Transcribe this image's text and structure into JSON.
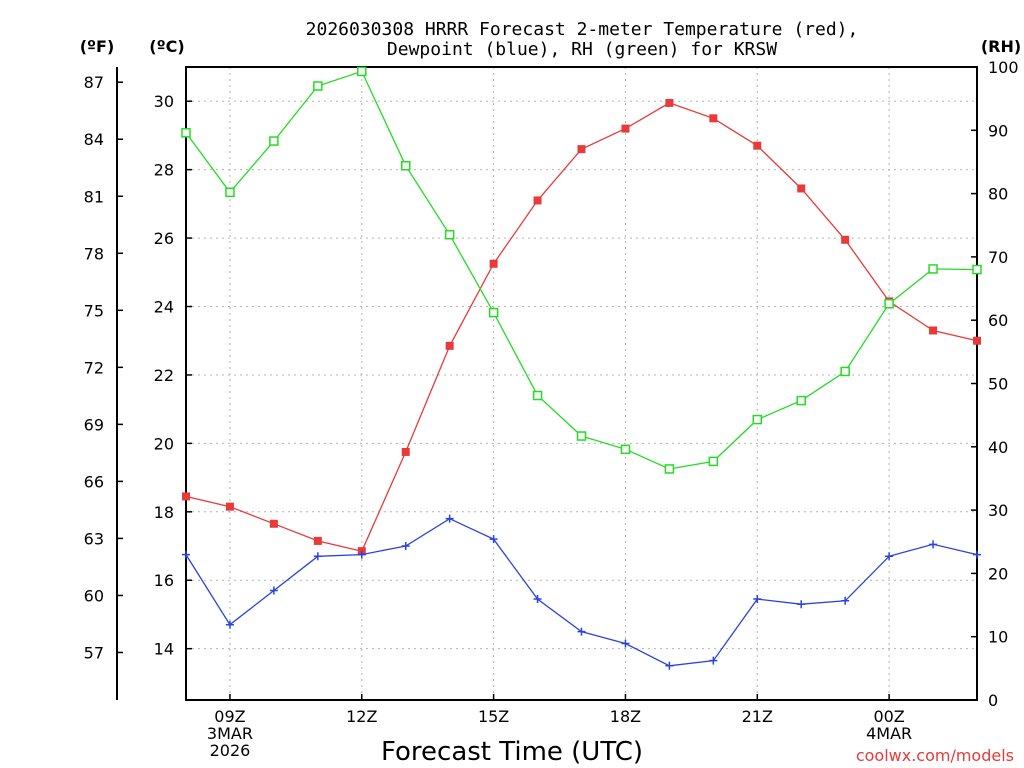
{
  "chart_data": {
    "type": "line",
    "title": "2026030308 HRRR Forecast 2-meter Temperature (red), Dewpoint (blue), RH (green) for KRSW",
    "title_lines": [
      "2026030308 HRRR Forecast 2-meter Temperature (red),",
      "Dewpoint (blue), RH (green) for KRSW"
    ],
    "xlabel": "Forecast Time (UTC)",
    "credit": "coolwx.com/models",
    "x_hours": [
      0,
      1,
      2,
      3,
      4,
      5,
      6,
      7,
      8,
      9,
      10,
      11,
      12,
      13,
      14,
      15,
      16,
      17,
      18
    ],
    "xlim": [
      0,
      18
    ],
    "x_ticks": [
      {
        "hour": 1,
        "lines": [
          "09Z",
          "3MAR",
          "2026"
        ]
      },
      {
        "hour": 4,
        "lines": [
          "12Z"
        ]
      },
      {
        "hour": 7,
        "lines": [
          "15Z"
        ]
      },
      {
        "hour": 10,
        "lines": [
          "18Z"
        ]
      },
      {
        "hour": 13,
        "lines": [
          "21Z"
        ]
      },
      {
        "hour": 16,
        "lines": [
          "00Z",
          "4MAR"
        ]
      }
    ],
    "axes": {
      "celsius": {
        "label": "(ºC)",
        "ylim": [
          12.5,
          31
        ],
        "ticks": [
          14,
          16,
          18,
          20,
          22,
          24,
          26,
          28,
          30
        ]
      },
      "fahrenheit": {
        "label": "(ºF)",
        "ticks": [
          57,
          60,
          63,
          66,
          69,
          72,
          75,
          78,
          81,
          84,
          87
        ]
      },
      "rh": {
        "label": "(RH)",
        "ylim": [
          0,
          100
        ],
        "ticks": [
          0,
          10,
          20,
          30,
          40,
          50,
          60,
          70,
          80,
          90,
          100
        ]
      }
    },
    "series": [
      {
        "name": "Temperature",
        "axis": "celsius",
        "color": "#e83a3a",
        "marker": "filled-square",
        "values": [
          18.45,
          18.15,
          17.65,
          17.15,
          16.85,
          19.75,
          22.85,
          25.25,
          27.1,
          28.6,
          29.2,
          29.95,
          29.5,
          28.7,
          27.45,
          25.95,
          24.15,
          23.3,
          23.0
        ]
      },
      {
        "name": "Dewpoint",
        "axis": "celsius",
        "color": "#2a43e0",
        "marker": "plus",
        "values": [
          16.75,
          14.7,
          15.7,
          16.7,
          16.75,
          17.0,
          17.8,
          17.2,
          15.45,
          14.5,
          14.15,
          13.5,
          13.65,
          15.45,
          15.3,
          15.4,
          16.7,
          17.05,
          16.75
        ]
      },
      {
        "name": "RH",
        "axis": "rh",
        "color": "#22dd22",
        "marker": "open-square",
        "values": [
          89.6,
          80.2,
          88.3,
          97.0,
          99.3,
          84.4,
          73.5,
          61.2,
          48.1,
          41.7,
          39.6,
          36.5,
          37.7,
          44.3,
          47.3,
          51.9,
          62.6,
          68.1,
          68.0
        ]
      }
    ]
  }
}
